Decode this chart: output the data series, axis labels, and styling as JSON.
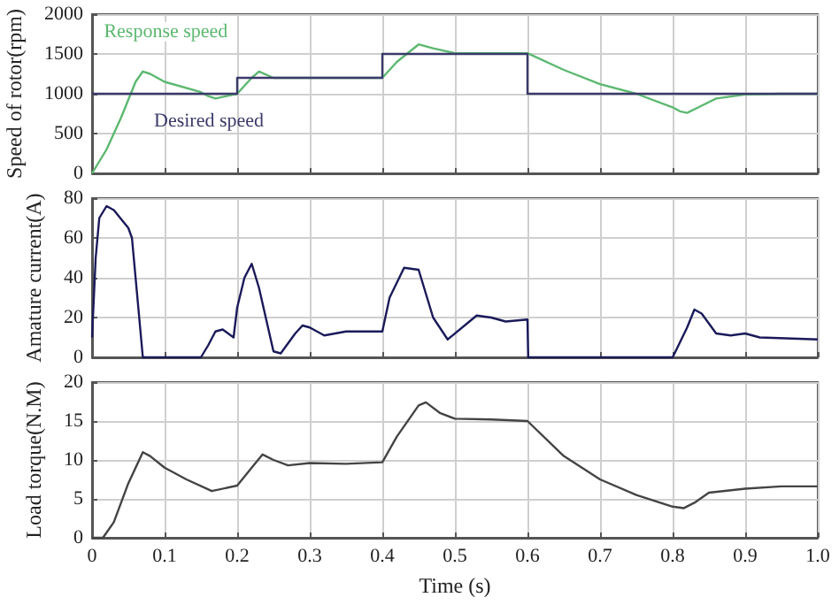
{
  "chart_data": [
    {
      "type": "line",
      "ylabel": "Speed of rotor(rpm)",
      "xlim": [
        0,
        1.0
      ],
      "ylim": [
        0,
        2000
      ],
      "yticks": [
        0,
        500,
        1000,
        1500,
        2000
      ],
      "xticks": [
        0,
        0.1,
        0.2,
        0.3,
        0.4,
        0.5,
        0.6,
        0.7,
        0.8,
        0.9,
        1.0
      ],
      "tick_labels": "y",
      "grid": true,
      "legend": false,
      "series": [
        {
          "name": "Response speed",
          "color": "#5cb870",
          "x": [
            0,
            0.02,
            0.04,
            0.06,
            0.07,
            0.08,
            0.1,
            0.15,
            0.16,
            0.17,
            0.2,
            0.22,
            0.23,
            0.25,
            0.3,
            0.4,
            0.42,
            0.45,
            0.47,
            0.5,
            0.6,
            0.65,
            0.7,
            0.75,
            0.8,
            0.81,
            0.82,
            0.84,
            0.86,
            0.9,
            0.95,
            1.0
          ],
          "values": [
            0,
            300,
            700,
            1150,
            1280,
            1250,
            1150,
            1020,
            970,
            940,
            1000,
            1200,
            1280,
            1200,
            1200,
            1200,
            1400,
            1620,
            1570,
            1510,
            1510,
            1300,
            1120,
            1000,
            830,
            780,
            760,
            850,
            940,
            990,
            1000,
            1000
          ]
        },
        {
          "name": "Desired speed",
          "type": "step",
          "color": "#3a3a6a",
          "x": [
            0,
            0.2,
            0.4,
            0.6,
            1.0
          ],
          "values": [
            1000,
            1200,
            1500,
            1000,
            1000
          ]
        }
      ]
    },
    {
      "type": "line",
      "ylabel": "Amature current(A)",
      "xlim": [
        0,
        1.0
      ],
      "ylim": [
        0,
        80
      ],
      "yticks": [
        0,
        20,
        40,
        60,
        80
      ],
      "xticks": [
        0,
        0.1,
        0.2,
        0.3,
        0.4,
        0.5,
        0.6,
        0.7,
        0.8,
        0.9,
        1.0
      ],
      "tick_labels": "y",
      "grid": true,
      "legend": false,
      "series": [
        {
          "color": "#1a1a5a",
          "x": [
            0,
            0.005,
            0.01,
            0.02,
            0.03,
            0.05,
            0.055,
            0.06,
            0.07,
            0.15,
            0.16,
            0.17,
            0.18,
            0.195,
            0.2,
            0.21,
            0.22,
            0.23,
            0.25,
            0.26,
            0.28,
            0.29,
            0.3,
            0.32,
            0.35,
            0.4,
            0.41,
            0.43,
            0.45,
            0.47,
            0.49,
            0.52,
            0.53,
            0.55,
            0.57,
            0.6,
            0.601,
            0.8,
            0.82,
            0.83,
            0.84,
            0.86,
            0.88,
            0.9,
            0.92,
            1.0
          ],
          "values": [
            10,
            50,
            70,
            76,
            74,
            65,
            60,
            40,
            0,
            0,
            6,
            13,
            14,
            10,
            25,
            40,
            47,
            35,
            3,
            2,
            12,
            16,
            15,
            11,
            13,
            13,
            30,
            45,
            44,
            20,
            9,
            18,
            21,
            20,
            18,
            19,
            0,
            0,
            15,
            24,
            22,
            12,
            11,
            12,
            10,
            9
          ]
        }
      ]
    },
    {
      "type": "line",
      "ylabel": "Load torque(N.M)",
      "xlabel": "Time (s)",
      "xlim": [
        0,
        1.0
      ],
      "ylim": [
        0,
        20
      ],
      "yticks": [
        0,
        5,
        10,
        15,
        20
      ],
      "xticks": [
        0,
        0.1,
        0.2,
        0.3,
        0.4,
        0.5,
        0.6,
        0.7,
        0.8,
        0.9,
        {
          "value": 1.0,
          "label": "1.0"
        }
      ],
      "grid": true,
      "legend": false,
      "series": [
        {
          "color": "#444444",
          "x": [
            0,
            0.015,
            0.03,
            0.05,
            0.07,
            0.08,
            0.1,
            0.13,
            0.165,
            0.2,
            0.22,
            0.235,
            0.25,
            0.27,
            0.3,
            0.35,
            0.4,
            0.42,
            0.45,
            0.46,
            0.48,
            0.5,
            0.55,
            0.6,
            0.65,
            0.7,
            0.75,
            0.8,
            0.815,
            0.83,
            0.85,
            0.9,
            0.95,
            1.0
          ],
          "values": [
            0,
            0,
            2,
            7,
            11,
            10.5,
            9,
            7.5,
            6,
            6.7,
            9,
            10.7,
            10,
            9.3,
            9.6,
            9.5,
            9.7,
            13,
            17,
            17.4,
            16,
            15.3,
            15.2,
            15,
            10.5,
            7.5,
            5.5,
            4,
            3.8,
            4.5,
            5.8,
            6.3,
            6.6,
            6.6
          ]
        }
      ]
    }
  ]
}
